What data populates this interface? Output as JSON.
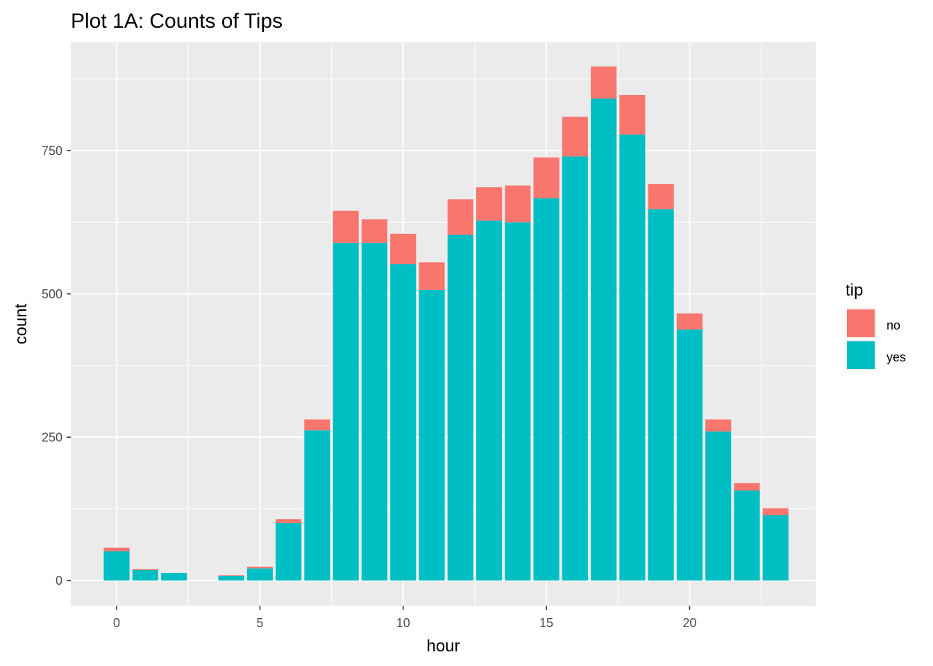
{
  "chart_data": {
    "type": "bar",
    "stacked": true,
    "title": "Plot 1A: Counts of Tips",
    "xlabel": "hour",
    "ylabel": "count",
    "x": [
      0,
      1,
      2,
      4,
      5,
      6,
      7,
      8,
      9,
      10,
      11,
      12,
      13,
      14,
      15,
      16,
      17,
      18,
      19,
      20,
      21,
      22,
      23
    ],
    "series": [
      {
        "name": "yes",
        "color": "#00BFC4",
        "values": [
          51,
          18,
          13,
          8,
          21,
          100,
          262,
          589,
          589,
          552,
          507,
          603,
          628,
          625,
          667,
          740,
          841,
          778,
          648,
          438,
          260,
          157,
          114
        ]
      },
      {
        "name": "no",
        "color": "#F8766D",
        "values": [
          6,
          2,
          0,
          1,
          3,
          7,
          19,
          56,
          41,
          53,
          48,
          62,
          58,
          64,
          71,
          69,
          56,
          69,
          44,
          28,
          21,
          13,
          12
        ]
      }
    ],
    "xlim": [
      -1.6,
      24.4
    ],
    "ylim": [
      -44,
      939
    ],
    "xticks": [
      0,
      5,
      10,
      15,
      20
    ],
    "yticks": [
      0,
      250,
      500,
      750
    ],
    "xtick_labels": [
      "0",
      "5",
      "10",
      "15",
      "20"
    ],
    "ytick_labels": [
      "0",
      "250",
      "500",
      "750"
    ],
    "grid": true,
    "legend": {
      "title": "tip",
      "position": "right",
      "entries": [
        {
          "label": "no",
          "color": "#F8766D"
        },
        {
          "label": "yes",
          "color": "#00BFC4"
        }
      ]
    }
  }
}
